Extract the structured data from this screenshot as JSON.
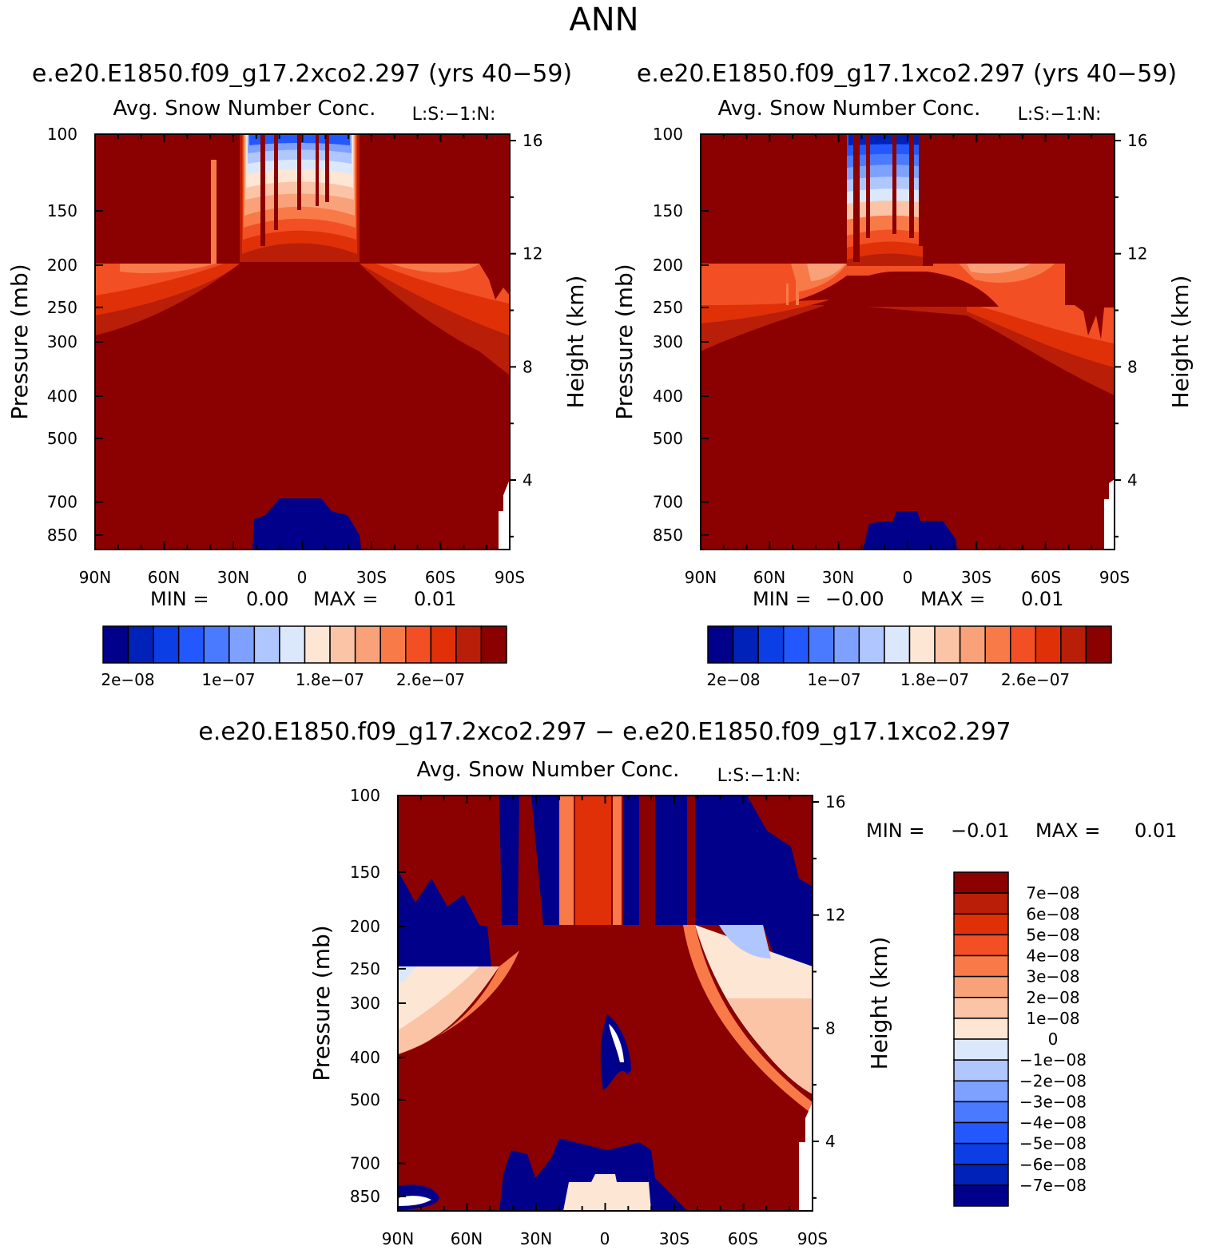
{
  "figure_title": "ANN",
  "chart_data": [
    {
      "id": "panel-test",
      "type": "contour",
      "case_title": "e.e20.E1850.f09_g17.2xco2.297 (yrs 40−59)",
      "title": "Avg. Snow Number Conc.",
      "subtitle": "L:S:−1:N:",
      "ylabel_left": "Pressure (mb)",
      "ylabel_right": "Height (km)",
      "x_ticks": [
        "90N",
        "60N",
        "30N",
        "0",
        "30S",
        "60S",
        "90S"
      ],
      "pressure_ticks": [
        "100",
        "150",
        "200",
        "250",
        "300",
        "400",
        "500",
        "700",
        "850"
      ],
      "pressure_values": [
        100,
        150,
        200,
        250,
        300,
        400,
        500,
        700,
        850
      ],
      "height_ticks": [
        "16",
        "12",
        "8",
        "4"
      ],
      "height_values": [
        16,
        12,
        8,
        4
      ],
      "ylim_pressure": [
        100,
        1000
      ],
      "stats": {
        "min_label": "MIN =",
        "min_value": "0.00",
        "max_label": "MAX =",
        "max_value": "0.01"
      },
      "colorbar_labels": [
        "2e−08",
        "1e−07",
        "1.8e−07",
        "2.6e−07"
      ],
      "colors": [
        "#00008b",
        "#0022b8",
        "#0c3ee6",
        "#2458ff",
        "#4a7aff",
        "#7ea0ff",
        "#b0c6ff",
        "#dbe8fb",
        "#fde6d4",
        "#fcc4a6",
        "#f9a27a",
        "#f87a48",
        "#f25024",
        "#e03008",
        "#b81e08",
        "#8b0000"
      ]
    },
    {
      "id": "panel-ctrl",
      "type": "contour",
      "case_title": "e.e20.E1850.f09_g17.1xco2.297 (yrs 40−59)",
      "title": "Avg. Snow Number Conc.",
      "subtitle": "L:S:−1:N:",
      "ylabel_left": "Pressure (mb)",
      "ylabel_right": "Height (km)",
      "x_ticks": [
        "90N",
        "60N",
        "30N",
        "0",
        "30S",
        "60S",
        "90S"
      ],
      "pressure_ticks": [
        "100",
        "150",
        "200",
        "250",
        "300",
        "400",
        "500",
        "700",
        "850"
      ],
      "pressure_values": [
        100,
        150,
        200,
        250,
        300,
        400,
        500,
        700,
        850
      ],
      "height_ticks": [
        "16",
        "12",
        "8",
        "4"
      ],
      "height_values": [
        16,
        12,
        8,
        4
      ],
      "ylim_pressure": [
        100,
        1000
      ],
      "stats": {
        "min_label": "MIN =",
        "min_value": "−0.00",
        "max_label": "MAX =",
        "max_value": "0.01"
      },
      "colorbar_labels": [
        "2e−08",
        "1e−07",
        "1.8e−07",
        "2.6e−07"
      ],
      "colors": [
        "#00008b",
        "#0022b8",
        "#0c3ee6",
        "#2458ff",
        "#4a7aff",
        "#7ea0ff",
        "#b0c6ff",
        "#dbe8fb",
        "#fde6d4",
        "#fcc4a6",
        "#f9a27a",
        "#f87a48",
        "#f25024",
        "#e03008",
        "#b81e08",
        "#8b0000"
      ]
    },
    {
      "id": "panel-diff",
      "type": "contour",
      "case_title": "e.e20.E1850.f09_g17.2xco2.297 − e.e20.E1850.f09_g17.1xco2.297",
      "title": "Avg. Snow Number Conc.",
      "subtitle": "L:S:−1:N:",
      "ylabel_left": "Pressure (mb)",
      "ylabel_right": "Height (km)",
      "x_ticks": [
        "90N",
        "60N",
        "30N",
        "0",
        "30S",
        "60S",
        "90S"
      ],
      "pressure_ticks": [
        "100",
        "150",
        "200",
        "250",
        "300",
        "400",
        "500",
        "700",
        "850"
      ],
      "pressure_values": [
        100,
        150,
        200,
        250,
        300,
        400,
        500,
        700,
        850
      ],
      "height_ticks": [
        "16",
        "12",
        "8",
        "4"
      ],
      "height_values": [
        16,
        12,
        8,
        4
      ],
      "ylim_pressure": [
        100,
        1000
      ],
      "stats": {
        "min_label": "MIN =",
        "min_value": "−0.01",
        "max_label": "MAX =",
        "max_value": "0.01"
      },
      "colorbar_labels": [
        "7e−08",
        "6e−08",
        "5e−08",
        "4e−08",
        "3e−08",
        "2e−08",
        "1e−08",
        "0",
        "−1e−08",
        "−2e−08",
        "−3e−08",
        "−4e−08",
        "−5e−08",
        "−6e−08",
        "−7e−08"
      ],
      "colors": [
        "#8b0000",
        "#b81e08",
        "#e03008",
        "#f25024",
        "#f87a48",
        "#f9a27a",
        "#fcc4a6",
        "#fde6d4",
        "#dbe8fb",
        "#b0c6ff",
        "#7ea0ff",
        "#4a7aff",
        "#2458ff",
        "#0c3ee6",
        "#0022b8",
        "#00008b"
      ]
    }
  ]
}
